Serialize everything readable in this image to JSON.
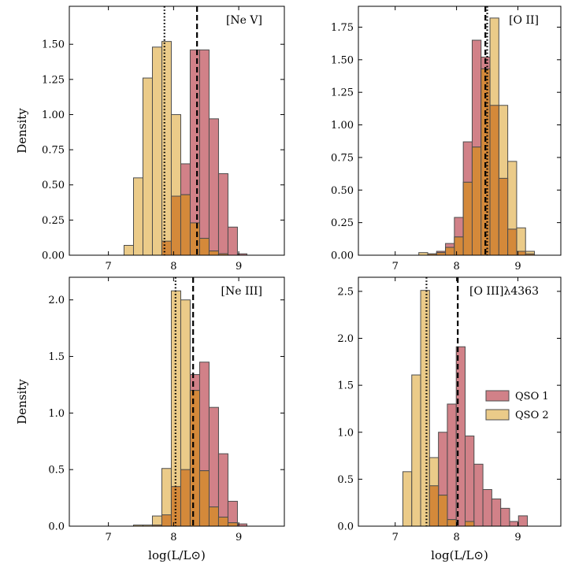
{
  "chart_data": [
    {
      "type": "bar",
      "title": "[Ne V]",
      "xlabel": "",
      "ylabel": "Density",
      "xlim": [
        6.4,
        9.7
      ],
      "ylim": [
        0,
        1.77
      ],
      "xticks": [
        7,
        8,
        9
      ],
      "yticks": [
        0.0,
        0.25,
        0.5,
        0.75,
        1.0,
        1.25,
        1.5
      ],
      "ytick_labels": [
        "0.00",
        "0.25",
        "0.50",
        "0.75",
        "1.00",
        "1.25",
        "1.50"
      ],
      "xtick_labels": [
        "7",
        "8",
        "9"
      ],
      "bin_width": 0.145,
      "series": [
        {
          "name": "QSO 1",
          "bins": [
            7.82,
            7.965,
            8.11,
            8.255,
            8.4,
            8.545,
            8.69,
            8.835,
            8.98
          ],
          "values": [
            0.1,
            0.42,
            0.65,
            1.46,
            1.46,
            0.97,
            0.58,
            0.2,
            0.01
          ]
        },
        {
          "name": "QSO 2",
          "bins": [
            7.24,
            7.385,
            7.53,
            7.675,
            7.82,
            7.965,
            8.11,
            8.255,
            8.4,
            8.545,
            8.69
          ],
          "values": [
            0.07,
            0.55,
            1.26,
            1.48,
            1.52,
            1.0,
            0.43,
            0.23,
            0.12,
            0.03,
            0.01
          ]
        }
      ],
      "vlines": [
        {
          "series": "QSO 1",
          "x": 8.36,
          "style": "dashed"
        },
        {
          "series": "QSO 2",
          "x": 7.86,
          "style": "dotted"
        }
      ]
    },
    {
      "type": "bar",
      "title": "[O II]",
      "xlabel": "",
      "ylabel": "",
      "xlim": [
        6.4,
        9.7
      ],
      "ylim": [
        0,
        1.91
      ],
      "xticks": [
        7,
        8,
        9
      ],
      "yticks": [
        0.0,
        0.25,
        0.5,
        0.75,
        1.0,
        1.25,
        1.5,
        1.75
      ],
      "ytick_labels": [
        "0.00",
        "0.25",
        "0.50",
        "0.75",
        "1.00",
        "1.25",
        "1.50",
        "1.75"
      ],
      "xtick_labels": [
        "7",
        "8",
        "9"
      ],
      "bin_width": 0.145,
      "series": [
        {
          "name": "QSO 1",
          "bins": [
            7.53,
            7.675,
            7.82,
            7.965,
            8.11,
            8.255,
            8.4,
            8.545,
            8.69,
            8.835,
            8.98,
            9.125
          ],
          "values": [
            0.01,
            0.03,
            0.09,
            0.29,
            0.87,
            1.65,
            1.52,
            1.15,
            0.59,
            0.2,
            0.03,
            0.01
          ]
        },
        {
          "name": "QSO 2",
          "bins": [
            7.24,
            7.385,
            7.53,
            7.675,
            7.82,
            7.965,
            8.11,
            8.255,
            8.4,
            8.545,
            8.69,
            8.835,
            8.98,
            9.125
          ],
          "values": [
            0.0,
            0.02,
            0.01,
            0.02,
            0.06,
            0.14,
            0.56,
            0.83,
            1.43,
            1.82,
            1.15,
            0.72,
            0.21,
            0.03
          ]
        }
      ],
      "vlines": [
        {
          "series": "QSO 1",
          "x": 8.47,
          "style": "dashed"
        },
        {
          "series": "QSO 2",
          "x": 8.5,
          "style": "dotted"
        }
      ]
    },
    {
      "type": "bar",
      "title": "[Ne III]",
      "xlabel": "log(L/L⊙)",
      "ylabel": "Density",
      "xlim": [
        6.4,
        9.7
      ],
      "ylim": [
        0,
        2.2
      ],
      "xticks": [
        7,
        8,
        9
      ],
      "yticks": [
        0.0,
        0.5,
        1.0,
        1.5,
        2.0
      ],
      "ytick_labels": [
        "0.0",
        "0.5",
        "1.0",
        "1.5",
        "2.0"
      ],
      "xtick_labels": [
        "7",
        "8",
        "9"
      ],
      "bin_width": 0.145,
      "series": [
        {
          "name": "QSO 1",
          "bins": [
            7.675,
            7.82,
            7.965,
            8.11,
            8.255,
            8.4,
            8.545,
            8.69,
            8.835,
            8.98
          ],
          "values": [
            0.01,
            0.1,
            0.35,
            0.5,
            1.34,
            1.45,
            1.05,
            0.64,
            0.22,
            0.02
          ]
        },
        {
          "name": "QSO 2",
          "bins": [
            7.24,
            7.385,
            7.53,
            7.675,
            7.82,
            7.965,
            8.11,
            8.255,
            8.4,
            8.545,
            8.69,
            8.835
          ],
          "values": [
            0.0,
            0.01,
            0.01,
            0.09,
            0.51,
            2.08,
            2.0,
            1.2,
            0.49,
            0.17,
            0.08,
            0.03
          ]
        }
      ],
      "vlines": [
        {
          "series": "QSO 1",
          "x": 8.3,
          "style": "dashed"
        },
        {
          "series": "QSO 2",
          "x": 8.03,
          "style": "dotted"
        }
      ]
    },
    {
      "type": "bar",
      "title": "[O III]λ4363",
      "xlabel": "log(L/L⊙)",
      "ylabel": "",
      "xlim": [
        6.4,
        9.7
      ],
      "ylim": [
        0,
        2.65
      ],
      "xticks": [
        7,
        8,
        9
      ],
      "yticks": [
        0.0,
        0.5,
        1.0,
        1.5,
        2.0,
        2.5
      ],
      "ytick_labels": [
        "0.0",
        "0.5",
        "1.0",
        "1.5",
        "2.0",
        "2.5"
      ],
      "xtick_labels": [
        "7",
        "8",
        "9"
      ],
      "bin_width": 0.145,
      "series": [
        {
          "name": "QSO 1",
          "bins": [
            7.415,
            7.56,
            7.705,
            7.85,
            7.995,
            8.14,
            8.285,
            8.43,
            8.575,
            8.72,
            8.865,
            9.01
          ],
          "values": [
            0.0,
            0.43,
            1.0,
            1.3,
            1.91,
            0.96,
            0.66,
            0.39,
            0.29,
            0.19,
            0.05,
            0.11
          ]
        },
        {
          "name": "QSO 2",
          "bins": [
            7.125,
            7.27,
            7.415,
            7.56,
            7.705,
            7.85,
            7.995,
            8.14,
            8.285
          ],
          "values": [
            0.58,
            1.61,
            2.51,
            0.73,
            0.33,
            0.07,
            0.0,
            0.05,
            0.0
          ]
        }
      ],
      "vlines": [
        {
          "series": "QSO 1",
          "x": 8.02,
          "style": "dashed"
        },
        {
          "series": "QSO 2",
          "x": 7.51,
          "style": "dotted"
        }
      ]
    }
  ],
  "legend": {
    "position": "right",
    "entries": [
      {
        "label": "QSO 1",
        "color": "#c96b73"
      },
      {
        "label": "QSO 2",
        "color": "#e8c274"
      }
    ]
  },
  "colors": {
    "qso1": "#c96b73",
    "qso2": "#e8c274",
    "overlap": "#d4893a",
    "edge": "#4d4d4d"
  }
}
